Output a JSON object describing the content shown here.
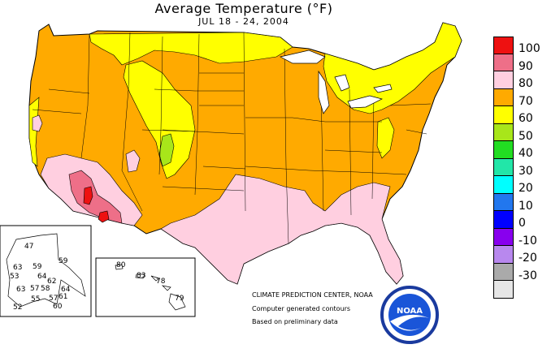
{
  "title": "Average Temperature (°F)",
  "period": "JUL 18 - 24, 2004",
  "legend": [
    {
      "label": "100",
      "color": "#ee1111"
    },
    {
      "label": "90",
      "color": "#ee6f88"
    },
    {
      "label": "80",
      "color": "#ffcfe0"
    },
    {
      "label": "70",
      "color": "#ffaa00"
    },
    {
      "label": "60",
      "color": "#ffff00"
    },
    {
      "label": "50",
      "color": "#a8e61a"
    },
    {
      "label": "40",
      "color": "#22dd22"
    },
    {
      "label": "30",
      "color": "#22e6a8"
    },
    {
      "label": "20",
      "color": "#00ffff"
    },
    {
      "label": "10",
      "color": "#2277ee"
    },
    {
      "label": "0",
      "color": "#0000ff"
    },
    {
      "label": "-10",
      "color": "#8800ee"
    },
    {
      "label": "-20",
      "color": "#b888ee"
    },
    {
      "label": "-30",
      "color": "#aaaaaa"
    },
    {
      "label": "",
      "color": "#e6e6e6"
    }
  ],
  "credits": {
    "center": "CLIMATE PREDICTION CENTER, NOAA",
    "line1": "Computer generated contours",
    "line2": "Based on preliminary data"
  },
  "logo_text": "NOAA",
  "alaska_values": [
    "47",
    "59",
    "63",
    "59",
    "64",
    "53",
    "62",
    "64",
    "63",
    "57",
    "58",
    "55",
    "57",
    "61",
    "52",
    "60"
  ],
  "hawaii_values": [
    "80",
    "83",
    "78",
    "79"
  ]
}
